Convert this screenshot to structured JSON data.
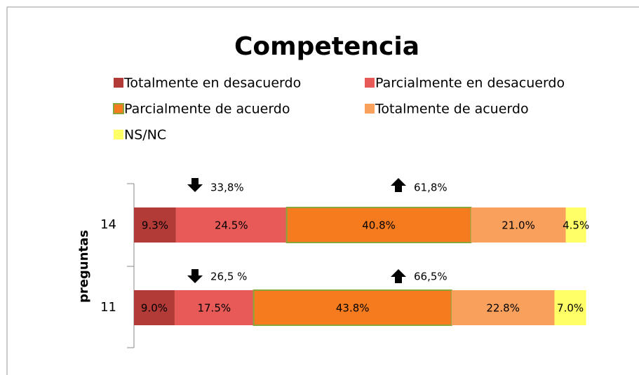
{
  "chart_data": {
    "type": "stacked_bar_horizontal",
    "title": "Competencia",
    "y_label": "preguntas",
    "categories": [
      "14",
      "11"
    ],
    "xlim": [
      0,
      100
    ],
    "series": [
      {
        "name": "Totalmente en desacuerdo",
        "color": "#b23a37",
        "values": [
          9.3,
          9.0
        ],
        "value_labels": [
          "9.3%",
          "9.0%"
        ]
      },
      {
        "name": "Parcialmente en desacuerdo",
        "color": "#e85a58",
        "values": [
          24.5,
          17.5
        ],
        "value_labels": [
          "24.5%",
          "17.5%"
        ]
      },
      {
        "name": "Parcialmente de acuerdo",
        "color": "#f57b1e",
        "border": "#8aa63a",
        "values": [
          40.8,
          43.8
        ],
        "value_labels": [
          "40.8%",
          "43.8%"
        ]
      },
      {
        "name": "Totalmente de acuerdo",
        "color": "#f9a05c",
        "values": [
          21.0,
          22.8
        ],
        "value_labels": [
          "21.0%",
          "22.8%"
        ]
      },
      {
        "name": "NS/NC",
        "color": "#ffff66",
        "values": [
          4.5,
          7.0
        ],
        "value_labels": [
          "4.5%",
          "7.0%"
        ]
      }
    ],
    "annotations": [
      {
        "category": "14",
        "arrow": "down",
        "text": "33,8%"
      },
      {
        "category": "14",
        "arrow": "up",
        "text": "61,8%"
      },
      {
        "category": "11",
        "arrow": "down",
        "text": "26,5 %"
      },
      {
        "category": "11",
        "arrow": "up",
        "text": "66,5%"
      }
    ]
  }
}
